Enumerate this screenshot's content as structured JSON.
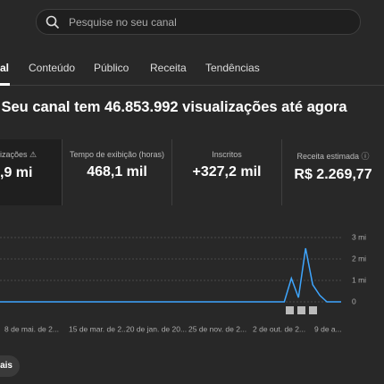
{
  "search": {
    "placeholder": "Pesquise no seu canal"
  },
  "tabs": [
    "al",
    "Conteúdo",
    "Público",
    "Receita",
    "Tendências"
  ],
  "headline": "Seu canal tem 46.853.992 visualizações até agora",
  "cards": [
    {
      "title": "izações",
      "value": ",9 mi"
    },
    {
      "title": "Tempo de exibição (horas)",
      "value": "468,1 mil"
    },
    {
      "title": "Inscritos",
      "value": "+327,2 mil"
    },
    {
      "title": "Receita estimada",
      "value": "R$ 2.269,77"
    }
  ],
  "chart_data": {
    "type": "line",
    "x_labels": [
      "8 de mai. de 2...",
      "15 de mar. de 2...",
      "20 de jan. de 20...",
      "25 de nov. de 2...",
      "2 de out. de 2...",
      "9 de a..."
    ],
    "series": [
      {
        "color": "#3ea6ff",
        "values": [
          0,
          0,
          0,
          0,
          0,
          0,
          0,
          0,
          0,
          0,
          0,
          0,
          0,
          0,
          0,
          0,
          0,
          0,
          0,
          0,
          0,
          0,
          0,
          0,
          0,
          0,
          0,
          0,
          0,
          0,
          0,
          0,
          0,
          0,
          0,
          0,
          0,
          0,
          0,
          0,
          0,
          1100000,
          200000,
          2500000,
          800000,
          300000,
          0,
          0,
          0
        ]
      }
    ],
    "ylim": [
      0,
      3000000
    ],
    "yticks": [
      {
        "value": 0,
        "label": "0"
      },
      {
        "value": 1000000,
        "label": "1 mi"
      },
      {
        "value": 2000000,
        "label": "2 mi"
      },
      {
        "value": 3000000,
        "label": "3 mi"
      }
    ],
    "grid": true
  },
  "button": "ais"
}
